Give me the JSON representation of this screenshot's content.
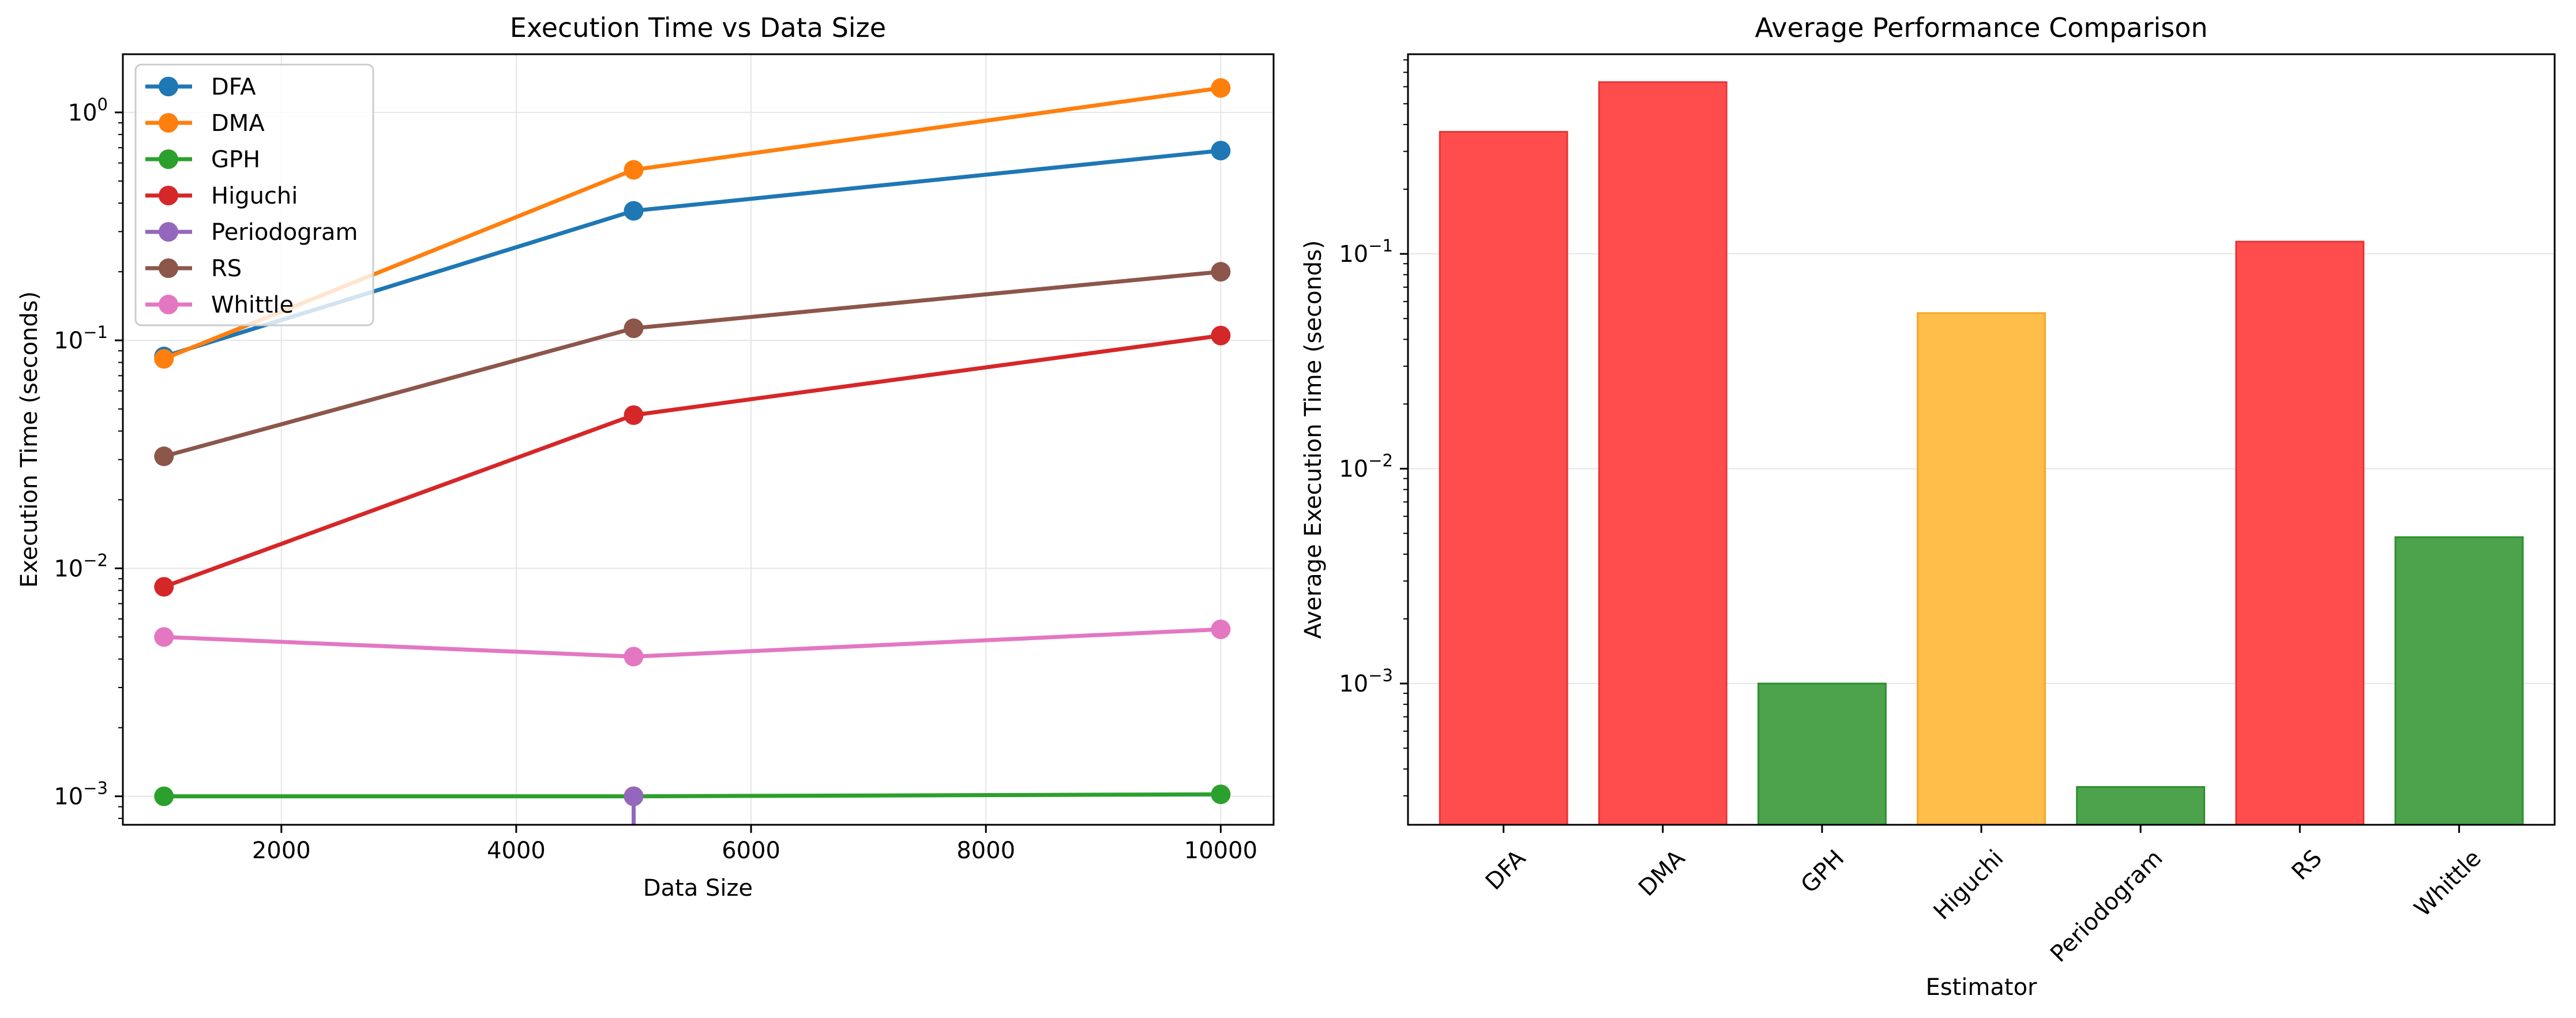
{
  "chart_data": [
    {
      "type": "line",
      "title": "Execution Time vs Data Size",
      "xlabel": "Data Size",
      "ylabel": "Execution Time (seconds)",
      "x_scale": "linear",
      "y_scale": "log",
      "xlim": [
        650,
        10450
      ],
      "ylim": [
        0.00075,
        1.8
      ],
      "x_ticks": [
        2000,
        4000,
        6000,
        8000,
        10000
      ],
      "x_tick_labels": [
        "2000",
        "4000",
        "6000",
        "8000",
        "10000"
      ],
      "y_ticks": [
        0.001,
        0.01,
        0.1,
        1
      ],
      "y_tick_labels": [
        {
          "base": "10",
          "exp": "−3"
        },
        {
          "base": "10",
          "exp": "−2"
        },
        {
          "base": "10",
          "exp": "−1"
        },
        {
          "base": "10",
          "exp": "0"
        }
      ],
      "grid": true,
      "legend": "upper-left",
      "x": [
        1000,
        5000,
        10000
      ],
      "series": [
        {
          "name": "DFA",
          "color": "#1f77b4",
          "values": [
            0.085,
            0.37,
            0.68
          ]
        },
        {
          "name": "DMA",
          "color": "#ff7f0e",
          "values": [
            0.083,
            0.56,
            1.28
          ]
        },
        {
          "name": "GPH",
          "color": "#2ca02c",
          "values": [
            0.001,
            0.001,
            0.00102
          ]
        },
        {
          "name": "Higuchi",
          "color": "#d62728",
          "values": [
            0.0083,
            0.047,
            0.105
          ]
        },
        {
          "name": "Periodogram",
          "color": "#9467bd",
          "values": [
            null,
            0.001,
            null
          ]
        },
        {
          "name": "RS",
          "color": "#8c564b",
          "values": [
            0.031,
            0.113,
            0.2
          ]
        },
        {
          "name": "Whittle",
          "color": "#e377c2",
          "values": [
            0.005,
            0.0041,
            0.0054
          ]
        }
      ]
    },
    {
      "type": "bar",
      "title": "Average Performance Comparison",
      "xlabel": "Estimator",
      "ylabel": "Average Execution Time (seconds)",
      "y_scale": "log",
      "ylim": [
        0.00022,
        0.85
      ],
      "y_ticks": [
        0.001,
        0.01,
        0.1
      ],
      "y_tick_labels": [
        {
          "base": "10",
          "exp": "−3"
        },
        {
          "base": "10",
          "exp": "−2"
        },
        {
          "base": "10",
          "exp": "−1"
        }
      ],
      "grid": true,
      "categories": [
        "DFA",
        "DMA",
        "GPH",
        "Higuchi",
        "Periodogram",
        "RS",
        "Whittle"
      ],
      "values": [
        0.37,
        0.63,
        0.001,
        0.053,
        0.00033,
        0.114,
        0.0048
      ],
      "colors": [
        "#ff4d4d",
        "#ff4d4d",
        "#4ca34c",
        "#ffbd4a",
        "#4ca34c",
        "#ff4d4d",
        "#4ca34c"
      ],
      "edge_colors": [
        "#e63535",
        "#e63535",
        "#2f8f2f",
        "#f5a623",
        "#2f8f2f",
        "#e63535",
        "#2f8f2f"
      ]
    }
  ]
}
